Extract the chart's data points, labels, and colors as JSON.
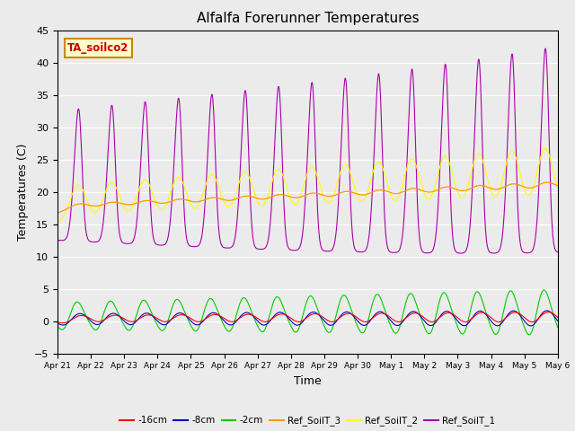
{
  "title": "Alfalfa Forerunner Temperatures",
  "xlabel": "Time",
  "ylabel": "Temperatures (C)",
  "annotation": "TA_soilco2",
  "ylim": [
    -5,
    45
  ],
  "yticks": [
    -5,
    0,
    5,
    10,
    15,
    20,
    25,
    30,
    35,
    40,
    45
  ],
  "x_labels": [
    "Apr 21",
    "Apr 22",
    "Apr 23",
    "Apr 24",
    "Apr 25",
    "Apr 26",
    "Apr 27",
    "Apr 28",
    "Apr 29",
    "Apr 30",
    "May 1",
    "May 2",
    "May 3",
    "May 4",
    "May 5",
    "May 6"
  ],
  "colors": {
    "minus16cm": "#ff0000",
    "minus8cm": "#0000cc",
    "minus2cm": "#00cc00",
    "Ref_SoilT_3": "#ff9900",
    "Ref_SoilT_2": "#ffff00",
    "Ref_SoilT_1": "#aa00aa"
  },
  "background_color": "#ebebeb",
  "n_points": 1440
}
